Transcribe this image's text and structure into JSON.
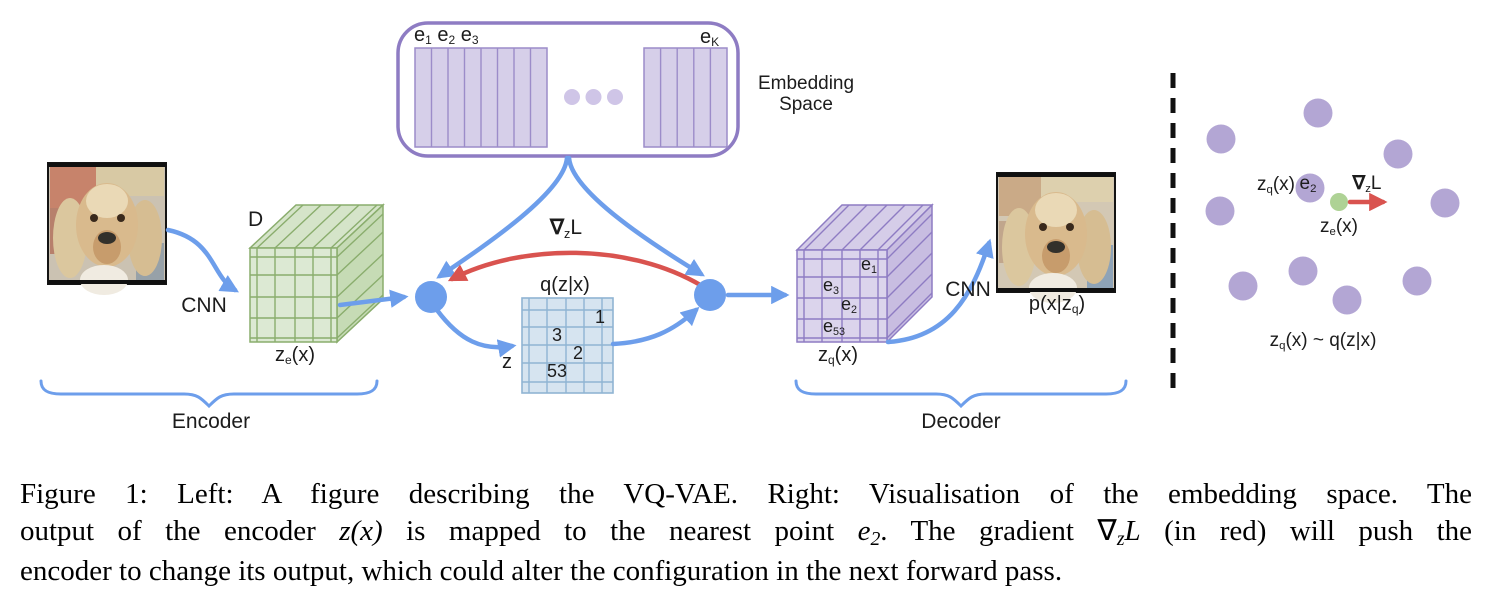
{
  "colors": {
    "arrow_blue": "#6d9eeb",
    "arrow_red": "#d9534f",
    "purple_border": "#8e7cc3",
    "codebook_fill": "#d6cfe9",
    "codebook_line": "#9c8cc9",
    "ellipsis_dot_fill": "#cfc5e7",
    "encoder_cube_front": "#dce9d3",
    "encoder_cube_top": "#d5e4c9",
    "encoder_cube_side": "#c6dbb5",
    "encoder_cube_line": "#8aad6d",
    "decoder_cube_front": "#dbd4ec",
    "decoder_cube_top": "#d5cde8",
    "decoder_cube_side": "#c8bde1",
    "latent_grid_fill": "#d6e4f0",
    "latent_grid_line": "#8fb4d3",
    "scatter_dot_purple": "#b3a6d4",
    "scatter_dot_green": "#aed295",
    "divider_black": "#111111"
  },
  "figure": {
    "embedding_space": {
      "labels_left": [
        {
          "t": "e"
        },
        {
          "t": "1",
          "sub": true
        },
        {
          "t": " e"
        },
        {
          "t": "2",
          "sub": true
        },
        {
          "t": " e"
        },
        {
          "t": "3",
          "sub": true
        }
      ],
      "label_k": [
        {
          "t": "e"
        },
        {
          "t": "K",
          "sub": true
        }
      ],
      "title_line1": "Embedding",
      "title_line2": "Space"
    },
    "encoder": {
      "depth_label": "D",
      "cnn_label": "CNN",
      "output_label": [
        {
          "t": "z"
        },
        {
          "t": "e",
          "sub": true
        },
        {
          "t": "(x)"
        }
      ],
      "brace_label": "Encoder"
    },
    "latent": {
      "title": "q(z|x)",
      "z_label": "z",
      "cells": [
        "1",
        "3",
        "2",
        "53"
      ]
    },
    "gradient_label": [
      {
        "t": "∇",
        "b": true
      },
      {
        "t": "z",
        "sub": true
      },
      {
        "t": "L"
      }
    ],
    "decoder": {
      "input_label": [
        {
          "t": "z"
        },
        {
          "t": "q",
          "sub": true
        },
        {
          "t": "(x)"
        }
      ],
      "cube_labels": [
        [
          {
            "t": "e"
          },
          {
            "t": "1",
            "sub": true
          }
        ],
        [
          {
            "t": "e"
          },
          {
            "t": "3",
            "sub": true
          }
        ],
        [
          {
            "t": "e"
          },
          {
            "t": "2",
            "sub": true
          }
        ],
        [
          {
            "t": "e"
          },
          {
            "t": "53",
            "sub": true
          }
        ]
      ],
      "cnn_label": "CNN",
      "output_label": [
        {
          "t": "p(x|z"
        },
        {
          "t": "q",
          "sub": true
        },
        {
          "t": ")"
        }
      ],
      "brace_label": "Decoder"
    },
    "right_panel": {
      "zq_label": [
        {
          "t": "z"
        },
        {
          "t": "q",
          "sub": true
        },
        {
          "t": "(x)"
        }
      ],
      "e2_label": [
        {
          "t": "e"
        },
        {
          "t": "2",
          "sub": true
        }
      ],
      "gradient_label": [
        {
          "t": "∇",
          "b": true
        },
        {
          "t": "z",
          "sub": true
        },
        {
          "t": "L"
        }
      ],
      "ze_label": [
        {
          "t": "z"
        },
        {
          "t": "e",
          "sub": true
        },
        {
          "t": "(x)"
        }
      ],
      "formula": [
        {
          "t": "z"
        },
        {
          "t": "q",
          "sub": true
        },
        {
          "t": "(x) ~ q(z|x)"
        }
      ]
    }
  },
  "caption": {
    "lines": [
      [
        {
          "t": "Figure 1: Left: A figure describing the VQ-VAE. Right: Visualisation of the embedding space. The"
        }
      ],
      [
        {
          "t": "output of the encoder "
        },
        {
          "t": "z(x)",
          "i": true
        },
        {
          "t": " is mapped to the nearest point "
        },
        {
          "t": "e",
          "i": true
        },
        {
          "t": "2",
          "sub": true,
          "i": true
        },
        {
          "t": ". The gradient "
        },
        {
          "t": "∇"
        },
        {
          "t": "z",
          "sub": true,
          "i": true
        },
        {
          "t": "L",
          "i": true
        },
        {
          "t": " (in red) will push the"
        }
      ],
      [
        {
          "t": "encoder to change its output, which could alter the configuration in the next forward pass."
        }
      ]
    ]
  }
}
